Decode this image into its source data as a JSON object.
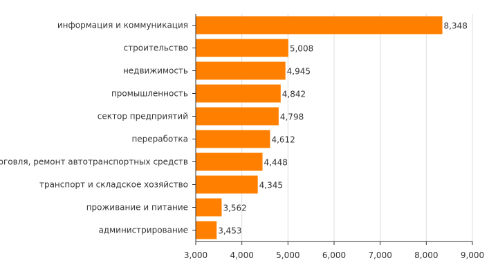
{
  "chart_data": {
    "type": "bar",
    "orientation": "horizontal",
    "categories": [
      "информация и коммуникация",
      "строительство",
      "недвижимость",
      "промышленность",
      "сектор предприятий",
      "переработка",
      "торговля, ремонт автотранспортных средств",
      "транспорт и складское хозяйство",
      "проживание и питание",
      "администрирование"
    ],
    "values": [
      8348,
      5008,
      4945,
      4842,
      4798,
      4612,
      4448,
      4345,
      3562,
      3453
    ],
    "value_labels": [
      "8,348",
      "5,008",
      "4,945",
      "4,842",
      "4,798",
      "4,612",
      "4,448",
      "4,345",
      "3,562",
      "3,453"
    ],
    "xlim": [
      3000,
      9000
    ],
    "xticks": [
      3000,
      4000,
      5000,
      6000,
      7000,
      8000,
      9000
    ],
    "xtick_labels": [
      "3,000",
      "4,000",
      "5,000",
      "6,000",
      "7,000",
      "8,000",
      "9,000"
    ],
    "grid": "vertical",
    "bar_color": "#ff8000",
    "title": "",
    "xlabel": "",
    "ylabel": ""
  }
}
